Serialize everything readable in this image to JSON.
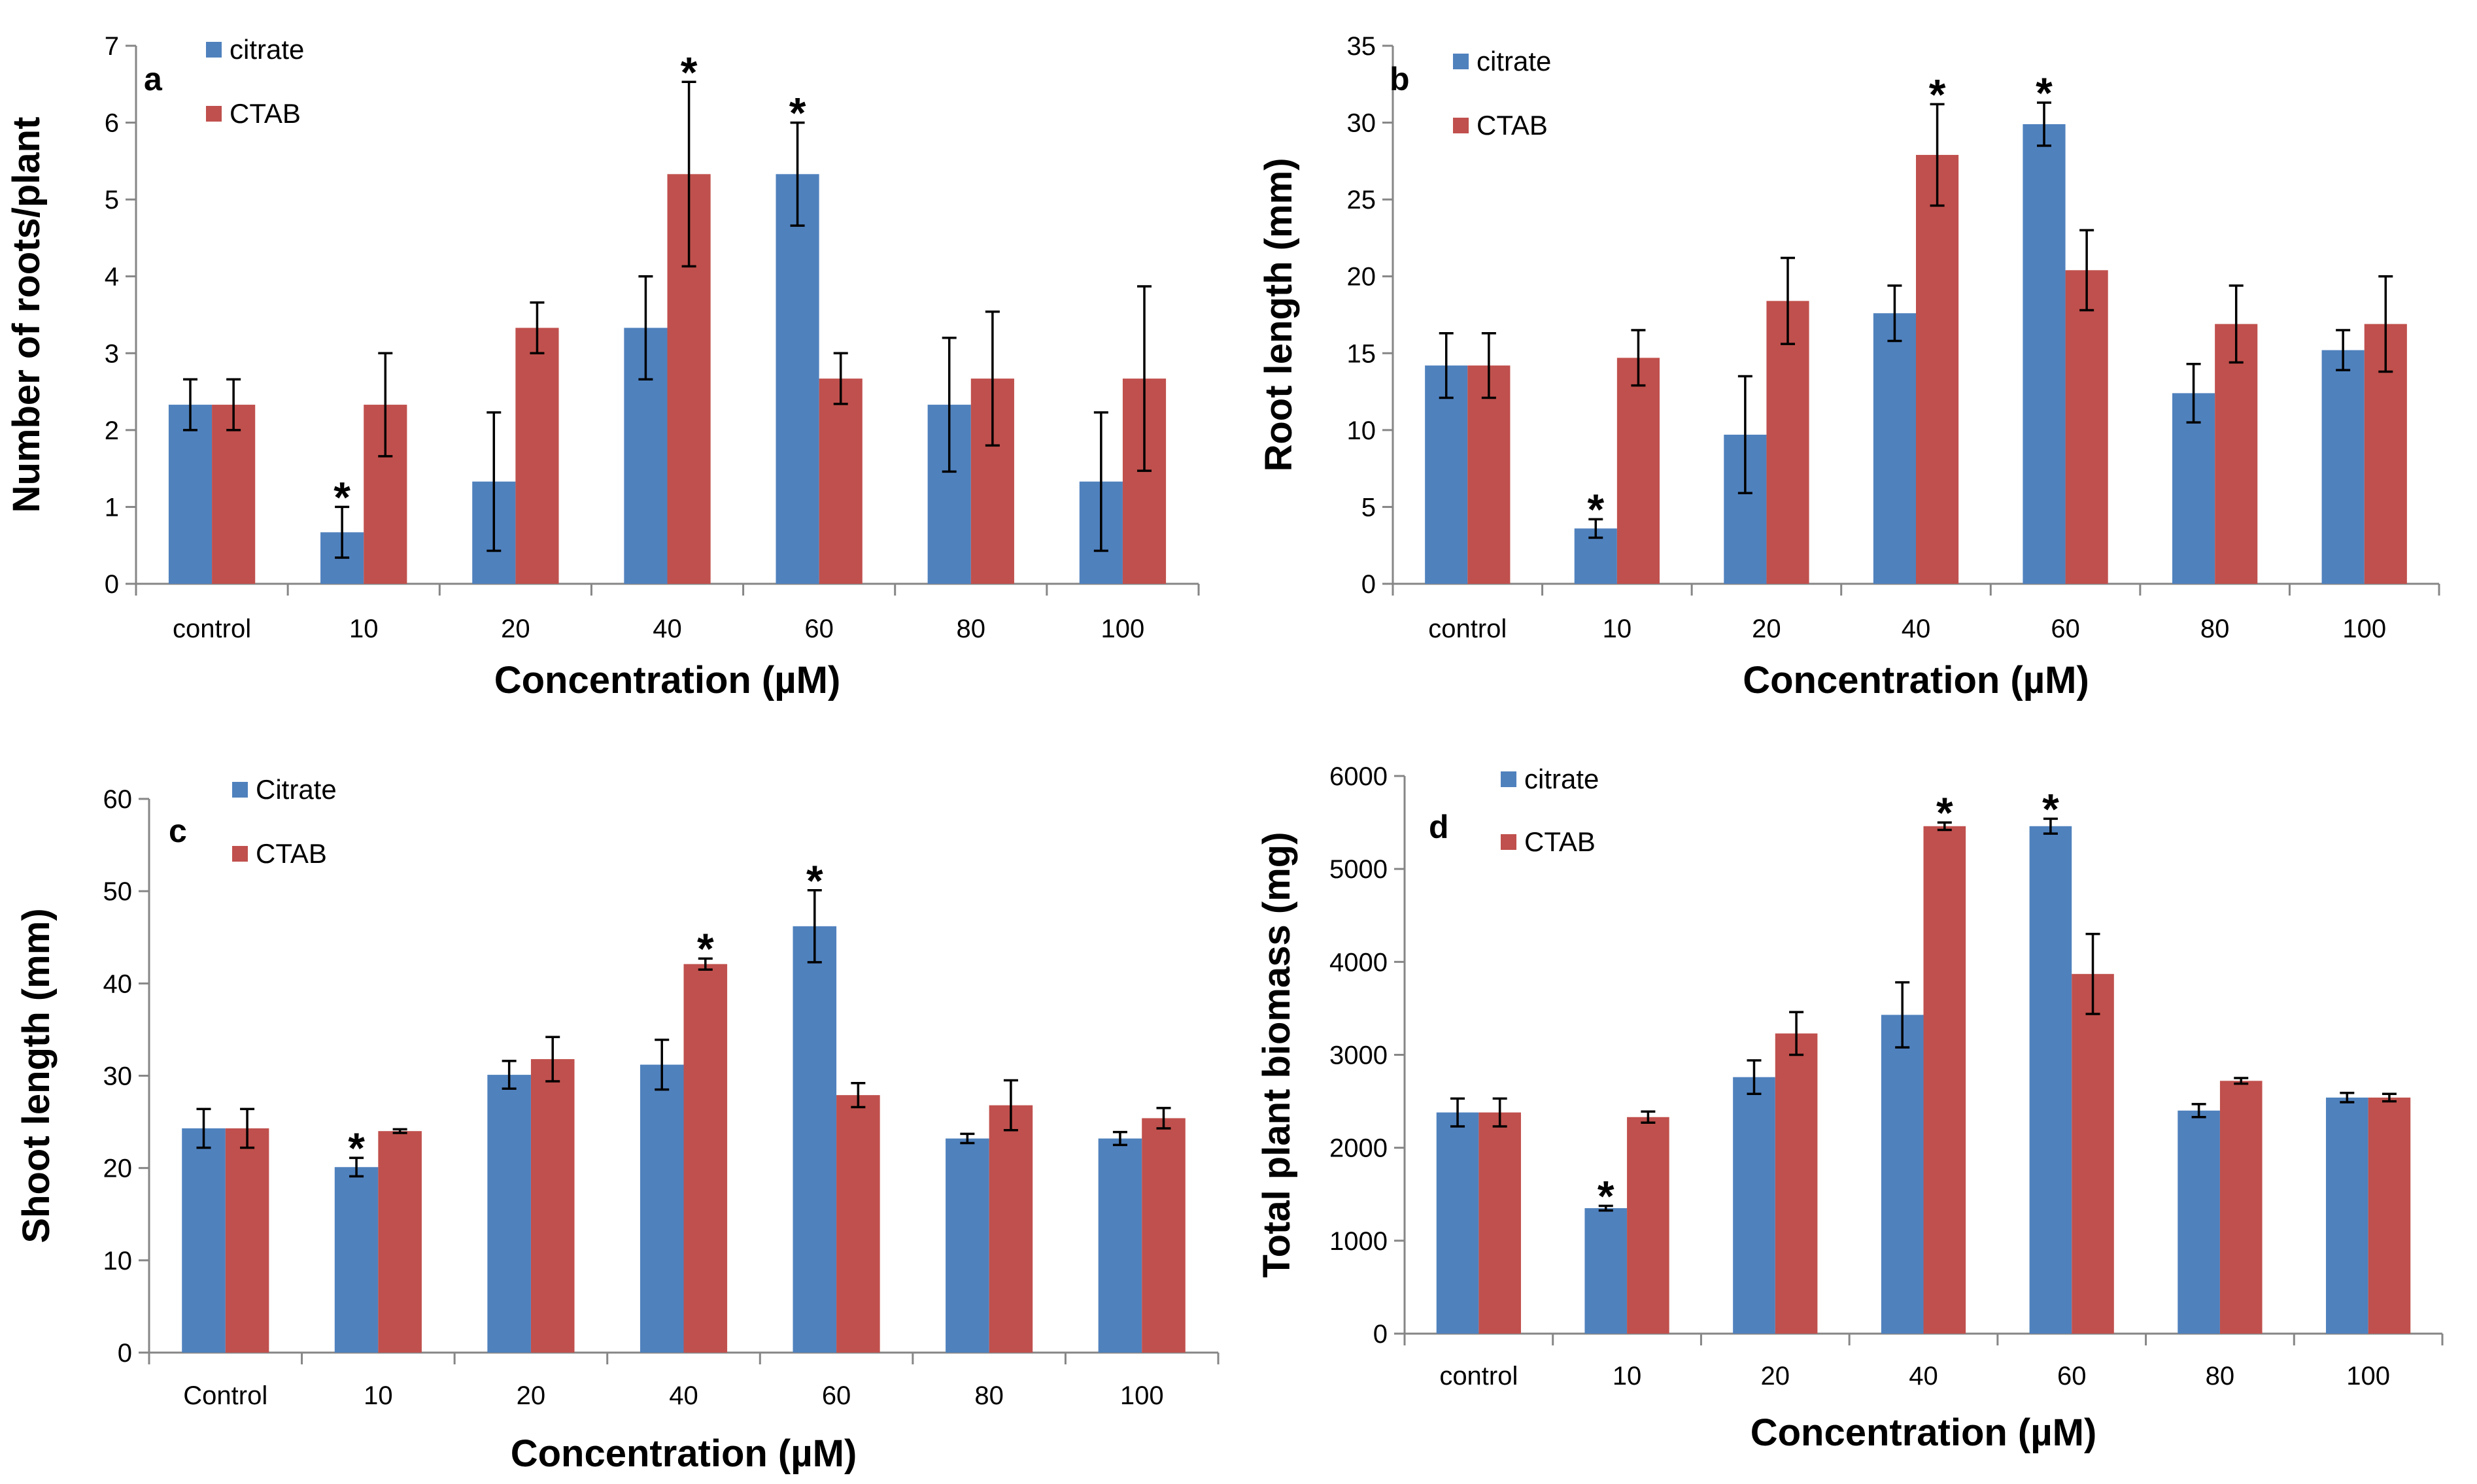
{
  "chart_data": [
    {
      "type": "bar",
      "panel": "a",
      "xlabel": "Concentration (µM)",
      "ylabel": "Number of roots/plant",
      "ylim": [
        0,
        7
      ],
      "yticks": [
        0,
        1,
        2,
        3,
        4,
        5,
        6,
        7
      ],
      "categories": [
        "control",
        "10",
        "20",
        "40",
        "60",
        "80",
        "100"
      ],
      "series": [
        {
          "name": "citrate",
          "color": "#4F81BD",
          "values": [
            2.33,
            0.67,
            1.33,
            3.33,
            5.33,
            2.33,
            1.33
          ],
          "errors": [
            0.33,
            0.33,
            0.9,
            0.67,
            0.67,
            0.87,
            0.9
          ]
        },
        {
          "name": "CTAB",
          "color": "#C0504D",
          "values": [
            2.33,
            2.33,
            3.33,
            5.33,
            2.67,
            2.67,
            2.67
          ],
          "errors": [
            0.33,
            0.67,
            0.33,
            1.2,
            0.33,
            0.87,
            1.2
          ]
        }
      ],
      "significance": [
        {
          "category": "10",
          "series": "citrate",
          "label": "*"
        },
        {
          "category": "40",
          "series": "CTAB",
          "label": "*"
        },
        {
          "category": "60",
          "series": "citrate",
          "label": "*"
        }
      ]
    },
    {
      "type": "bar",
      "panel": "b",
      "xlabel": "Concentration (µM)",
      "ylabel": "Root length (mm)",
      "ylim": [
        0,
        35
      ],
      "yticks": [
        0,
        5,
        10,
        15,
        20,
        25,
        30,
        35
      ],
      "categories": [
        "control",
        "10",
        "20",
        "40",
        "60",
        "80",
        "100"
      ],
      "series": [
        {
          "name": "citrate",
          "color": "#4F81BD",
          "values": [
            14.2,
            3.6,
            9.7,
            17.6,
            29.9,
            12.4,
            15.2
          ],
          "errors": [
            2.1,
            0.6,
            3.8,
            1.8,
            1.4,
            1.9,
            1.3
          ]
        },
        {
          "name": "CTAB",
          "color": "#C0504D",
          "values": [
            14.2,
            14.7,
            18.4,
            27.9,
            20.4,
            16.9,
            16.9
          ],
          "errors": [
            2.1,
            1.8,
            2.8,
            3.3,
            2.6,
            2.5,
            3.1
          ]
        }
      ],
      "significance": [
        {
          "category": "10",
          "series": "citrate",
          "label": "*"
        },
        {
          "category": "40",
          "series": "CTAB",
          "label": "*"
        },
        {
          "category": "60",
          "series": "citrate",
          "label": "*"
        }
      ]
    },
    {
      "type": "bar",
      "panel": "c",
      "xlabel": "Concentration (µM)",
      "ylabel": "Shoot length (mm)",
      "ylim": [
        0,
        60
      ],
      "yticks": [
        0,
        10,
        20,
        30,
        40,
        50,
        60
      ],
      "categories": [
        "Control",
        "10",
        "20",
        "40",
        "60",
        "80",
        "100"
      ],
      "series": [
        {
          "name": "Citrate",
          "color": "#4F81BD",
          "values": [
            24.3,
            20.1,
            30.1,
            31.2,
            46.2,
            23.2,
            23.2
          ],
          "errors": [
            2.1,
            1.0,
            1.5,
            2.7,
            3.9,
            0.5,
            0.7
          ]
        },
        {
          "name": "CTAB",
          "color": "#C0504D",
          "values": [
            24.3,
            24.0,
            31.8,
            42.1,
            27.9,
            26.8,
            25.4
          ],
          "errors": [
            2.1,
            0.2,
            2.4,
            0.6,
            1.3,
            2.7,
            1.1
          ]
        }
      ],
      "significance": [
        {
          "category": "10",
          "series": "Citrate",
          "label": "*"
        },
        {
          "category": "40",
          "series": "CTAB",
          "label": "*"
        },
        {
          "category": "60",
          "series": "Citrate",
          "label": "*"
        }
      ]
    },
    {
      "type": "bar",
      "panel": "d",
      "xlabel": "Concentration (µM)",
      "ylabel": "Total plant biomass (mg)",
      "ylim": [
        0,
        6000
      ],
      "yticks": [
        0,
        1000,
        2000,
        3000,
        4000,
        5000,
        6000
      ],
      "categories": [
        "control",
        "10",
        "20",
        "40",
        "60",
        "80",
        "100"
      ],
      "series": [
        {
          "name": "citrate",
          "color": "#4F81BD",
          "values": [
            2380,
            1350,
            2760,
            3430,
            5460,
            2400,
            2540
          ],
          "errors": [
            150,
            25,
            180,
            350,
            80,
            70,
            50
          ]
        },
        {
          "name": "CTAB",
          "color": "#C0504D",
          "values": [
            2380,
            2330,
            3230,
            5460,
            3870,
            2720,
            2540
          ],
          "errors": [
            150,
            60,
            230,
            40,
            430,
            30,
            40
          ]
        }
      ],
      "significance": [
        {
          "category": "10",
          "series": "citrate",
          "label": "*"
        },
        {
          "category": "40",
          "series": "CTAB",
          "label": "*"
        },
        {
          "category": "60",
          "series": "citrate",
          "label": "*"
        }
      ]
    }
  ]
}
